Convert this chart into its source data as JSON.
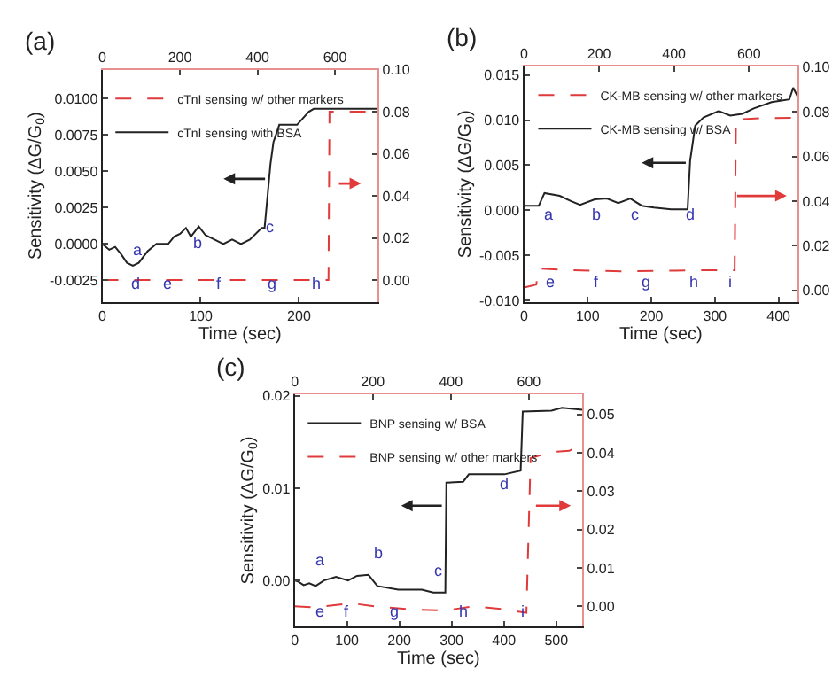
{
  "chart_data": [
    {
      "type": "line",
      "title": "(a)",
      "xlabel": "Time (sec)",
      "ylabel": "Sensitivity (ΔG/G$_{0}$)",
      "legend": "top left",
      "marker": "none",
      "xlim": [
        0,
        280
      ],
      "xticks": [
        0,
        100,
        200
      ],
      "x2lim": [
        0,
        710
      ],
      "x2ticks": [
        0,
        200,
        400,
        600
      ],
      "ylim": [
        -0.004,
        0.012
      ],
      "yticks": [
        {
          "value": -0.0025,
          "label": "-0.0025"
        },
        {
          "value": 0,
          "label": "0.0000"
        },
        {
          "value": 0.0025,
          "label": "0.0025"
        },
        {
          "value": 0.005,
          "label": "0.0050"
        },
        {
          "value": 0.0075,
          "label": "0.0075"
        },
        {
          "value": 0.01,
          "label": "0.0100"
        }
      ],
      "y2lim": [
        -0.0105,
        0.1
      ],
      "y2ticks": [
        {
          "value": 0,
          "label": "0.00"
        },
        {
          "value": 0.02,
          "label": "0.02"
        },
        {
          "value": 0.04,
          "label": "0.04"
        },
        {
          "value": 0.06,
          "label": "0.06"
        },
        {
          "value": 0.08,
          "label": "0.08"
        },
        {
          "value": 0.1,
          "label": "0.10"
        }
      ],
      "series": [
        {
          "name": "cTnI sensing w/ other markers",
          "color": "#e03a3a",
          "axis": "y2",
          "line_style": "dashed",
          "x": [
            0,
            230,
            231,
            279
          ],
          "values": [
            0,
            0,
            0.08,
            0.08
          ]
        },
        {
          "name": "cTnI sensing with BSA",
          "color": "#222222",
          "line_style": "solid",
          "x": [
            0,
            7,
            13,
            19,
            25,
            31,
            37,
            46,
            55,
            67,
            73,
            79,
            85,
            90,
            98,
            105,
            114,
            123,
            132,
            141,
            150,
            162,
            165,
            171,
            174,
            180,
            198,
            210,
            215,
            279
          ],
          "values": [
            0,
            -0.0004,
            -0.0002,
            -0.0007,
            -0.0013,
            -0.0015,
            -0.0013,
            -0.0005,
            0,
            0,
            0.0005,
            0.0007,
            0.0011,
            0.0005,
            0.0012,
            0.0006,
            0.0003,
            0,
            0.0003,
            0,
            0.0003,
            0.0011,
            0.0011,
            0.0055,
            0.007,
            0.0082,
            0.0082,
            0.0091,
            0.0093,
            0.0093
          ]
        }
      ],
      "annotations": [
        "a",
        "b",
        "c",
        "d",
        "e",
        "f",
        "g",
        "h"
      ]
    },
    {
      "type": "line",
      "title": "(b)",
      "xlabel": "Time (sec)",
      "ylabel": "Sensitivity (ΔG/G$_{0}$)",
      "legend": "top right",
      "marker": "none",
      "xlim": [
        0,
        430
      ],
      "xticks": [
        0,
        100,
        200,
        300,
        400
      ],
      "x2lim": [
        0,
        730
      ],
      "x2ticks": [
        0,
        200,
        400,
        600
      ],
      "ylim": [
        -0.0102,
        0.016
      ],
      "yticks": [
        {
          "value": -0.01,
          "label": "-0.010"
        },
        {
          "value": -0.005,
          "label": "-0.005"
        },
        {
          "value": 0,
          "label": "0.000"
        },
        {
          "value": 0.005,
          "label": "0.005"
        },
        {
          "value": 0.01,
          "label": "0.010"
        },
        {
          "value": 0.015,
          "label": "0.015"
        }
      ],
      "y2lim": [
        -0.0052,
        0.1005
      ],
      "y2ticks": [
        {
          "value": 0,
          "label": "0.00"
        },
        {
          "value": 0.02,
          "label": "0.02"
        },
        {
          "value": 0.04,
          "label": "0.04"
        },
        {
          "value": 0.06,
          "label": "0.06"
        },
        {
          "value": 0.08,
          "label": "0.08"
        },
        {
          "value": 0.1,
          "label": "0.10"
        }
      ],
      "series": [
        {
          "name": "CK-MB sensing w/ other markers",
          "color": "#e03a3a",
          "axis": "y2",
          "line_style": "dashed",
          "x": [
            0,
            19,
            23,
            65,
            153,
            296,
            331,
            333,
            370,
            430
          ],
          "values": [
            0.0013,
            0.0026,
            0.0099,
            0.0091,
            0.0086,
            0.0091,
            0.0091,
            0.0766,
            0.0771,
            0.0774
          ]
        },
        {
          "name": "CK-MB sensing w/ BSA",
          "color": "#222222",
          "line_style": "solid",
          "x": [
            0,
            23,
            32,
            56,
            74,
            88,
            111,
            130,
            148,
            167,
            185,
            204,
            231,
            257,
            261,
            269,
            282,
            306,
            324,
            343,
            361,
            389,
            417,
            423,
            430
          ],
          "values": [
            0.0005,
            0.0005,
            0.0019,
            0.0016,
            0.001,
            0.0006,
            0.0012,
            0.0013,
            0.0008,
            0.0013,
            0.0005,
            0.0003,
            0.0001,
            0.0001,
            0.0055,
            0.0094,
            0.0103,
            0.011,
            0.0105,
            0.0107,
            0.0113,
            0.012,
            0.0123,
            0.0136,
            0.0126
          ]
        }
      ],
      "annotations": [
        "a",
        "b",
        "c",
        "d",
        "e",
        "f",
        "g",
        "h",
        "i"
      ]
    },
    {
      "type": "line",
      "title": "(c)",
      "xlabel": "Time (sec)",
      "ylabel": "Sensitivity (ΔG/G$_{0}$)",
      "legend": "top left",
      "marker": "none",
      "xlim": [
        0,
        550
      ],
      "xticks": [
        0,
        100,
        200,
        300,
        400,
        500
      ],
      "x2lim": [
        0,
        737
      ],
      "x2ticks": [
        0,
        200,
        400,
        600
      ],
      "ylim": [
        -0.005,
        0.0202
      ],
      "yticks": [
        {
          "value": 0,
          "label": "0.00"
        },
        {
          "value": 0.01,
          "label": "0.01"
        },
        {
          "value": 0.02,
          "label": "0.02"
        }
      ],
      "y2lim": [
        -0.0053,
        0.0553
      ],
      "y2ticks": [
        {
          "value": 0,
          "label": "0.00"
        },
        {
          "value": 0.01,
          "label": "0.01"
        },
        {
          "value": 0.02,
          "label": "0.02"
        },
        {
          "value": 0.03,
          "label": "0.03"
        },
        {
          "value": 0.04,
          "label": "0.04"
        },
        {
          "value": 0.05,
          "label": "0.05"
        }
      ],
      "series": [
        {
          "name": "BNP sensing w/ BSA",
          "color": "#222222",
          "line_style": "solid",
          "x": [
            0,
            6,
            17,
            28,
            40,
            56,
            79,
            102,
            119,
            141,
            158,
            198,
            243,
            265,
            288,
            290,
            322,
            333,
            401,
            432,
            436,
            491,
            511,
            550
          ],
          "values": [
            0,
            -0.0001,
            -0.0005,
            -0.0003,
            -0.0006,
            0,
            0.0004,
            0,
            0.0005,
            0.0006,
            -0.0006,
            -0.001,
            -0.001,
            -0.0013,
            -0.0013,
            0.0106,
            0.0107,
            0.0115,
            0.0115,
            0.0119,
            0.0183,
            0.0184,
            0.0187,
            0.0185
          ]
        },
        {
          "name": "BNP sensing w/ other markers",
          "color": "#e03a3a",
          "axis": "y2",
          "line_style": "dashed",
          "x": [
            0,
            40,
            107,
            152,
            219,
            287,
            344,
            400,
            443,
            451,
            491,
            525,
            550
          ],
          "values": [
            0,
            -0.0003,
            0.0008,
            0,
            -0.0008,
            -0.0011,
            0,
            -0.0008,
            -0.0017,
            0.0386,
            0.0402,
            0.0405,
            0.0424
          ]
        }
      ],
      "annotations": [
        "a",
        "b",
        "c",
        "d",
        "e",
        "f",
        "g",
        "h",
        "i"
      ]
    }
  ]
}
